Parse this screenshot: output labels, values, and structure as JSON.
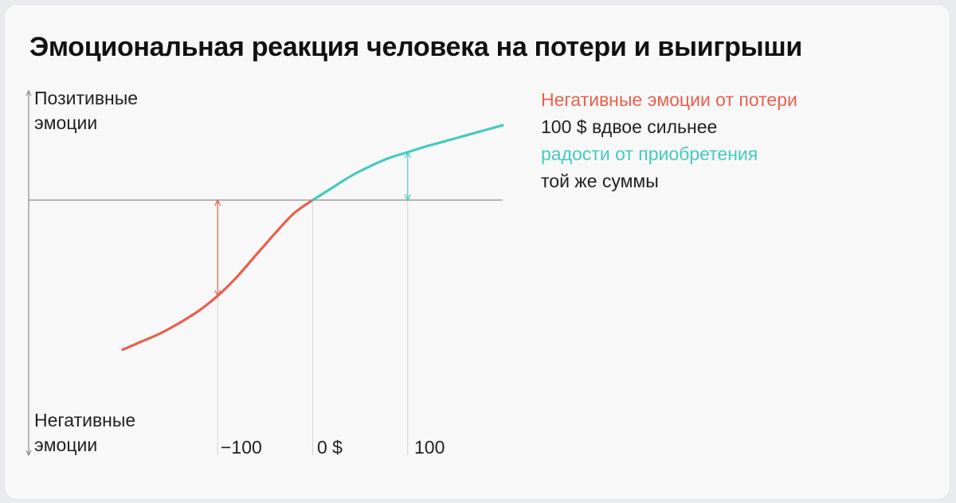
{
  "title": "Эмоциональная реакция человека на потери и выигрыши",
  "colors": {
    "loss": "#e8604c",
    "gain": "#45cbbf",
    "axis": "#8a8a8a",
    "grid": "#d6d6d6"
  },
  "chart_data": {
    "type": "line",
    "title": "Эмоциональная реакция человека на потери и выигрыши",
    "ylabel_top": [
      "Позитивные",
      "эмоции"
    ],
    "ylabel_bottom": [
      "Негативные",
      "эмоции"
    ],
    "x_ticks": [
      {
        "value": -100,
        "label": "−100"
      },
      {
        "value": 0,
        "label": "0 $"
      },
      {
        "value": 100,
        "label": "100"
      }
    ],
    "xlim": [
      -200,
      200
    ],
    "ylim": [
      -2.3,
      1.3
    ],
    "series": [
      {
        "segment": "losses",
        "x": [
          -200,
          -180,
          -160,
          -140,
          -120,
          -100,
          -80,
          -60,
          -40,
          -20,
          0
        ],
        "y": [
          -2.0,
          -1.89,
          -1.78,
          -1.64,
          -1.48,
          -1.28,
          -1.03,
          -0.74,
          -0.45,
          -0.18,
          0
        ]
      },
      {
        "segment": "gains",
        "x": [
          0,
          20,
          40,
          60,
          80,
          100,
          120,
          140,
          160,
          180,
          200
        ],
        "y": [
          0,
          0.16,
          0.32,
          0.45,
          0.56,
          0.64,
          0.72,
          0.79,
          0.86,
          0.93,
          1.0
        ]
      }
    ],
    "value_arrows": [
      {
        "x": -100,
        "from": 0,
        "to": -1.28,
        "color": "loss"
      },
      {
        "x": 100,
        "from": 0,
        "to": 0.64,
        "color": "gain"
      }
    ],
    "annotation": [
      {
        "text": "Негативные эмоции от потери",
        "color": "loss"
      },
      {
        "text": "100 $ вдвое сильнее",
        "color": "text"
      },
      {
        "text": "радости от приобретения",
        "color": "gain"
      },
      {
        "text": "той же суммы",
        "color": "text"
      }
    ]
  }
}
